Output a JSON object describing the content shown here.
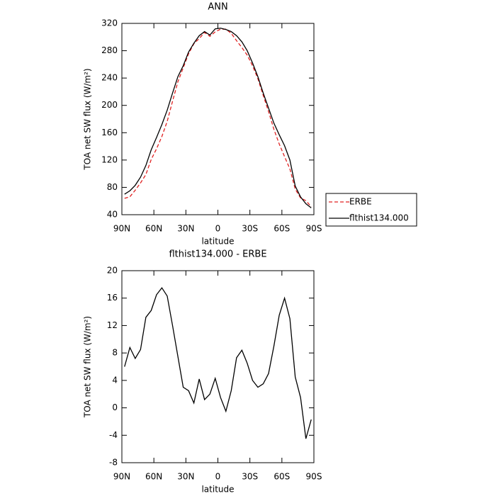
{
  "chart_data": [
    {
      "type": "line",
      "title": "ANN",
      "x_label": "latitude",
      "y_label": "TOA net SW flux (W/m²)",
      "x": [
        87.5,
        82.5,
        77.5,
        72.5,
        67.5,
        62.5,
        57.5,
        52.5,
        47.5,
        42.5,
        37.5,
        32.5,
        27.5,
        22.5,
        17.5,
        12.5,
        7.5,
        2.5,
        -2.5,
        -7.5,
        -12.5,
        -17.5,
        -22.5,
        -27.5,
        -32.5,
        -37.5,
        -42.5,
        -47.5,
        -52.5,
        -57.5,
        -62.5,
        -67.5,
        -72.5,
        -77.5,
        -82.5,
        -87.5
      ],
      "series": [
        {
          "name": "ERBE",
          "color": "#e02020",
          "linestyle": "dashed",
          "values": [
            64,
            66.2,
            75.8,
            86.5,
            98.8,
            120.8,
            136.5,
            154.5,
            176.7,
            206,
            234.5,
            255,
            275.5,
            290.3,
            297.8,
            306.8,
            301,
            307.7,
            311.5,
            311.5,
            305.5,
            294.7,
            284.6,
            273.5,
            258,
            239,
            214.5,
            191,
            165,
            143.5,
            125,
            107,
            77.5,
            64.5,
            60.5,
            51.7
          ]
        },
        {
          "name": "flthist134.000",
          "color": "#000000",
          "linestyle": "solid",
          "values": [
            70,
            75,
            83,
            95,
            112,
            135,
            153,
            172,
            193,
            218,
            242,
            258,
            278,
            291,
            302,
            308,
            303,
            312,
            313,
            311,
            308,
            302,
            293,
            280,
            262,
            242,
            218,
            196,
            174,
            157,
            141,
            120,
            82,
            66,
            56,
            50
          ]
        }
      ],
      "xlim": [
        90,
        -90
      ],
      "xticks": [
        {
          "value": 90,
          "label": "90N"
        },
        {
          "value": 60,
          "label": "60N"
        },
        {
          "value": 30,
          "label": "30N"
        },
        0,
        {
          "value": -30,
          "label": "30S"
        },
        {
          "value": -60,
          "label": "60S"
        },
        {
          "value": -90,
          "label": "90S"
        }
      ],
      "ylim": [
        40,
        320
      ],
      "yticks": [
        40,
        80,
        120,
        160,
        200,
        240,
        280,
        320
      ],
      "legend": "right"
    },
    {
      "type": "line",
      "title": "flthist134.000 - ERBE",
      "x_label": "latitude",
      "y_label": "TOA net SW flux (W/m²)",
      "x": [
        87.5,
        82.5,
        77.5,
        72.5,
        67.5,
        62.5,
        57.5,
        52.5,
        47.5,
        42.5,
        37.5,
        32.5,
        27.5,
        22.5,
        17.5,
        12.5,
        7.5,
        2.5,
        -2.5,
        -7.5,
        -12.5,
        -17.5,
        -22.5,
        -27.5,
        -32.5,
        -37.5,
        -42.5,
        -47.5,
        -52.5,
        -57.5,
        -62.5,
        -67.5,
        -72.5,
        -77.5,
        -82.5,
        -87.5
      ],
      "values": [
        6,
        8.8,
        7.2,
        8.5,
        13.2,
        14.2,
        16.5,
        17.5,
        16.3,
        12,
        7.5,
        3,
        2.5,
        0.7,
        4.2,
        1.2,
        2,
        4.3,
        1.5,
        -0.5,
        2.5,
        7.3,
        8.4,
        6.5,
        4,
        3,
        3.5,
        5,
        9,
        13.5,
        16,
        13,
        4.5,
        1.5,
        -4.5,
        -1.7
      ],
      "color": "#000000",
      "xlim": [
        90,
        -90
      ],
      "xticks": [
        {
          "value": 90,
          "label": "90N"
        },
        {
          "value": 60,
          "label": "60N"
        },
        {
          "value": 30,
          "label": "30N"
        },
        0,
        {
          "value": -30,
          "label": "30S"
        },
        {
          "value": -60,
          "label": "60S"
        },
        {
          "value": -90,
          "label": "90S"
        }
      ],
      "ylim": [
        -8,
        20
      ],
      "yticks": [
        -8,
        -4,
        0,
        4,
        8,
        12,
        16,
        20
      ]
    }
  ]
}
